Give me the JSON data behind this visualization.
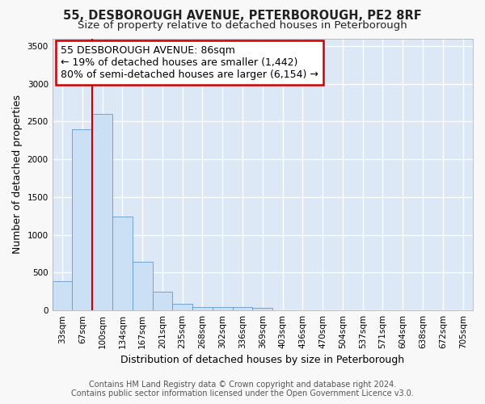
{
  "title": "55, DESBOROUGH AVENUE, PETERBOROUGH, PE2 8RF",
  "subtitle": "Size of property relative to detached houses in Peterborough",
  "xlabel": "Distribution of detached houses by size in Peterborough",
  "ylabel": "Number of detached properties",
  "categories": [
    "33sqm",
    "67sqm",
    "100sqm",
    "134sqm",
    "167sqm",
    "201sqm",
    "235sqm",
    "268sqm",
    "302sqm",
    "336sqm",
    "369sqm",
    "403sqm",
    "436sqm",
    "470sqm",
    "504sqm",
    "537sqm",
    "571sqm",
    "604sqm",
    "638sqm",
    "672sqm",
    "705sqm"
  ],
  "values": [
    390,
    2400,
    2600,
    1240,
    640,
    250,
    90,
    50,
    50,
    40,
    35,
    0,
    0,
    0,
    0,
    0,
    0,
    0,
    0,
    0,
    0
  ],
  "bar_color": "#cce0f5",
  "bar_edge_color": "#6699cc",
  "vline_x_idx": 2,
  "vline_color": "#cc0000",
  "annotation_text": "55 DESBOROUGH AVENUE: 86sqm\n← 19% of detached houses are smaller (1,442)\n80% of semi-detached houses are larger (6,154) →",
  "annotation_box_facecolor": "#ffffff",
  "annotation_box_edgecolor": "#cc0000",
  "ylim": [
    0,
    3600
  ],
  "yticks": [
    0,
    500,
    1000,
    1500,
    2000,
    2500,
    3000,
    3500
  ],
  "fig_facecolor": "#f8f8f8",
  "ax_facecolor": "#dce8f5",
  "grid_color": "#ffffff",
  "footer_line1": "Contains HM Land Registry data © Crown copyright and database right 2024.",
  "footer_line2": "Contains public sector information licensed under the Open Government Licence v3.0.",
  "title_fontsize": 10.5,
  "subtitle_fontsize": 9.5,
  "axis_label_fontsize": 9,
  "tick_fontsize": 7.5,
  "annotation_fontsize": 9,
  "footer_fontsize": 7
}
